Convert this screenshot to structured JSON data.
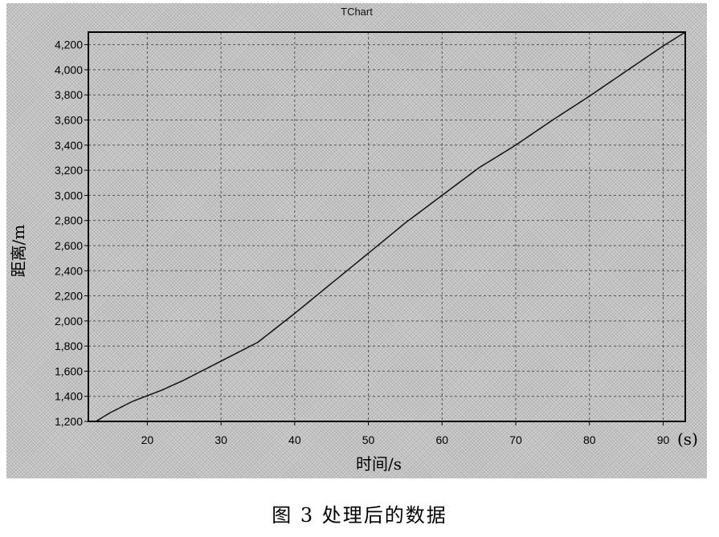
{
  "caption": "图 3  处理后的数据",
  "chart_data": {
    "type": "line",
    "title": "TChart",
    "xlabel": "时间/s",
    "ylabel": "距离/m",
    "x_unit_label": "(s)",
    "xlim": [
      12,
      93
    ],
    "ylim": [
      1200,
      4300
    ],
    "x_ticks": [
      20,
      30,
      40,
      50,
      60,
      70,
      80,
      90
    ],
    "x_tick_labels": [
      "20",
      "30",
      "40",
      "50",
      "60",
      "70",
      "80",
      "90"
    ],
    "y_ticks": [
      1200,
      1400,
      1600,
      1800,
      2000,
      2200,
      2400,
      2600,
      2800,
      3000,
      3200,
      3400,
      3600,
      3800,
      4000,
      4200
    ],
    "y_tick_labels": [
      "1,200",
      "1,400",
      "1,600",
      "1,800",
      "2,000",
      "2,200",
      "2,400",
      "2,600",
      "2,800",
      "3,000",
      "3,200",
      "3,400",
      "3,600",
      "3,800",
      "4,000",
      "4,200"
    ],
    "grid": true,
    "series": [
      {
        "x": [
          13,
          15,
          18,
          22,
          25,
          28,
          31,
          35,
          40,
          45,
          50,
          55,
          60,
          65,
          70,
          75,
          80,
          85,
          90,
          93
        ],
        "y": [
          1200,
          1270,
          1360,
          1450,
          1530,
          1620,
          1710,
          1830,
          2060,
          2300,
          2540,
          2780,
          3000,
          3220,
          3400,
          3600,
          3790,
          3990,
          4190,
          4300
        ],
        "color": "#111111"
      }
    ],
    "colors": {
      "background": "#cfcfcf",
      "grid": "#555555",
      "line": "#111111",
      "frame": "#000000"
    }
  }
}
